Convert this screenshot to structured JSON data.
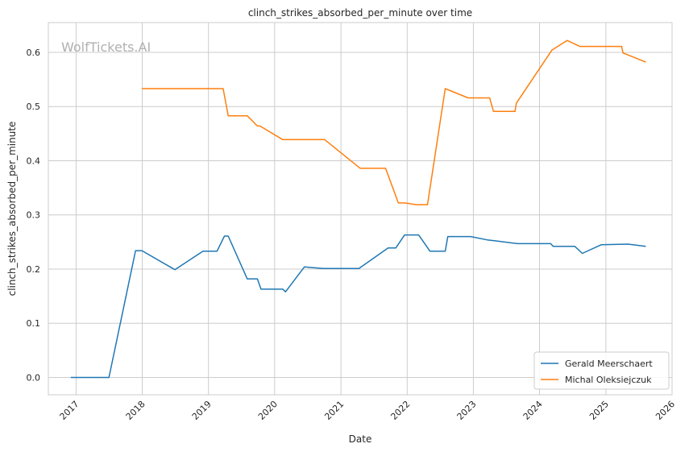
{
  "chart_data": {
    "type": "line",
    "title": "clinch_strikes_absorbed_per_minute over time",
    "xlabel": "Date",
    "ylabel": "clinch_strikes_absorbed_per_minute",
    "watermark": "WolfTickets.AI",
    "xlim": [
      "2016-08-01",
      "2026-01-01"
    ],
    "ylim": [
      -0.032,
      0.655
    ],
    "x_ticks": [
      "2017",
      "2018",
      "2019",
      "2020",
      "2021",
      "2022",
      "2023",
      "2024",
      "2025",
      "2026"
    ],
    "y_ticks": [
      "0.0",
      "0.1",
      "0.2",
      "0.3",
      "0.4",
      "0.5",
      "0.6"
    ],
    "grid": true,
    "legend_position": "lower-right",
    "series": [
      {
        "name": "Gerald Meerschaert",
        "color": "#1f77b4",
        "points": [
          [
            "2016-12-03",
            0.0
          ],
          [
            "2017-07-01",
            0.0
          ],
          [
            "2017-11-25",
            0.234
          ],
          [
            "2017-12-30",
            0.234
          ],
          [
            "2018-06-30",
            0.199
          ],
          [
            "2018-12-02",
            0.233
          ],
          [
            "2019-02-17",
            0.233
          ],
          [
            "2019-03-30",
            0.261
          ],
          [
            "2019-04-20",
            0.261
          ],
          [
            "2019-08-03",
            0.182
          ],
          [
            "2019-09-28",
            0.182
          ],
          [
            "2019-10-18",
            0.163
          ],
          [
            "2020-02-15",
            0.163
          ],
          [
            "2020-03-01",
            0.158
          ],
          [
            "2020-06-13",
            0.204
          ],
          [
            "2020-09-27",
            0.201
          ],
          [
            "2021-02-06",
            0.201
          ],
          [
            "2021-04-10",
            0.201
          ],
          [
            "2021-09-18",
            0.239
          ],
          [
            "2021-10-30",
            0.239
          ],
          [
            "2021-12-18",
            0.263
          ],
          [
            "2022-03-05",
            0.263
          ],
          [
            "2022-05-07",
            0.233
          ],
          [
            "2022-07-30",
            0.233
          ],
          [
            "2022-08-13",
            0.26
          ],
          [
            "2022-12-17",
            0.26
          ],
          [
            "2023-03-18",
            0.254
          ],
          [
            "2023-05-06",
            0.252
          ],
          [
            "2023-09-02",
            0.247
          ],
          [
            "2024-03-02",
            0.247
          ],
          [
            "2024-03-16",
            0.242
          ],
          [
            "2024-07-13",
            0.242
          ],
          [
            "2024-08-24",
            0.229
          ],
          [
            "2024-12-07",
            0.245
          ],
          [
            "2025-05-03",
            0.246
          ],
          [
            "2025-08-09",
            0.242
          ]
        ]
      },
      {
        "name": "Michal Oleksiejczuk",
        "color": "#ff7f0e",
        "points": [
          [
            "2017-12-30",
            0.533
          ],
          [
            "2019-03-23",
            0.533
          ],
          [
            "2019-04-20",
            0.483
          ],
          [
            "2019-08-03",
            0.483
          ],
          [
            "2019-09-28",
            0.464
          ],
          [
            "2019-10-12",
            0.464
          ],
          [
            "2020-02-15",
            0.439
          ],
          [
            "2020-10-03",
            0.439
          ],
          [
            "2021-04-17",
            0.386
          ],
          [
            "2021-09-04",
            0.386
          ],
          [
            "2021-11-13",
            0.322
          ],
          [
            "2021-12-18",
            0.322
          ],
          [
            "2022-02-19",
            0.319
          ],
          [
            "2022-04-23",
            0.319
          ],
          [
            "2022-07-30",
            0.533
          ],
          [
            "2022-12-03",
            0.516
          ],
          [
            "2023-04-01",
            0.516
          ],
          [
            "2023-04-22",
            0.491
          ],
          [
            "2023-08-19",
            0.491
          ],
          [
            "2023-08-26",
            0.506
          ],
          [
            "2024-03-09",
            0.604
          ],
          [
            "2024-06-01",
            0.622
          ],
          [
            "2024-08-10",
            0.611
          ],
          [
            "2025-03-29",
            0.611
          ],
          [
            "2025-04-05",
            0.599
          ],
          [
            "2025-08-09",
            0.582
          ]
        ]
      }
    ]
  }
}
